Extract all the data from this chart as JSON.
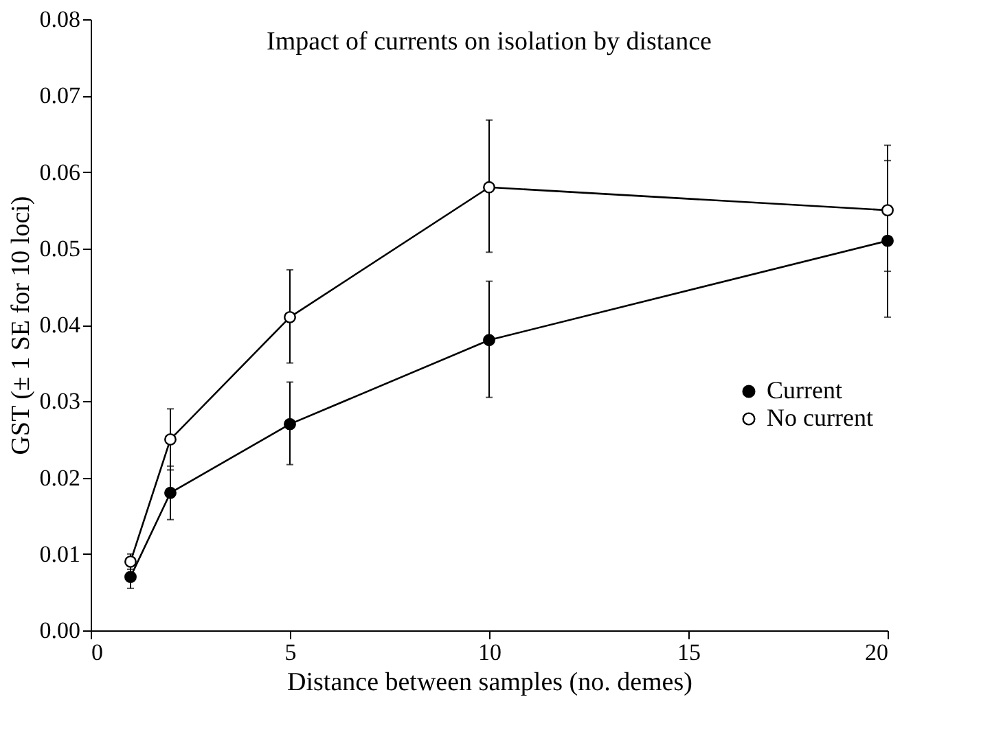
{
  "chart_data": {
    "type": "line",
    "title": "Impact of currents on isolation by distance",
    "xlabel": "Distance between samples (no. demes)",
    "ylabel": "GST (± 1 SE for 10 loci)",
    "x": [
      1,
      2,
      5,
      10,
      20
    ],
    "series": [
      {
        "name": "Current",
        "color": "#000000",
        "values": [
          0.007,
          0.018,
          0.027,
          0.038,
          0.051
        ],
        "errors": [
          [
            0.0055,
            0.0085
          ],
          [
            0.0145,
            0.0215
          ],
          [
            0.0217,
            0.0325
          ],
          [
            0.0305,
            0.0457
          ],
          [
            0.041,
            0.0615
          ]
        ]
      },
      {
        "name": "No current",
        "color": "#ffffff",
        "values": [
          0.009,
          0.025,
          0.041,
          0.058,
          0.055
        ],
        "errors": [
          [
            0.008,
            0.01
          ],
          [
            0.021,
            0.029
          ],
          [
            0.035,
            0.0472
          ],
          [
            0.0495,
            0.0668
          ],
          [
            0.047,
            0.0635
          ]
        ]
      }
    ],
    "xlim": [
      0,
      20
    ],
    "xticks": [
      0,
      5,
      10,
      15,
      20
    ],
    "ylim": [
      0,
      0.08
    ],
    "yticks": [
      {
        "value": 0,
        "label": "0.00"
      },
      {
        "value": 0.01,
        "label": "0.01"
      },
      {
        "value": 0.02,
        "label": "0.02"
      },
      {
        "value": 0.03,
        "label": "0.03"
      },
      {
        "value": 0.04,
        "label": "0.04"
      },
      {
        "value": 0.05,
        "label": "0.05"
      },
      {
        "value": 0.06,
        "label": "0.06"
      },
      {
        "value": 0.07,
        "label": "0.07"
      },
      {
        "value": 0.08,
        "label": "0.08"
      }
    ],
    "grid": false,
    "legend": "right",
    "marker": "circle",
    "line_style": "solid"
  }
}
